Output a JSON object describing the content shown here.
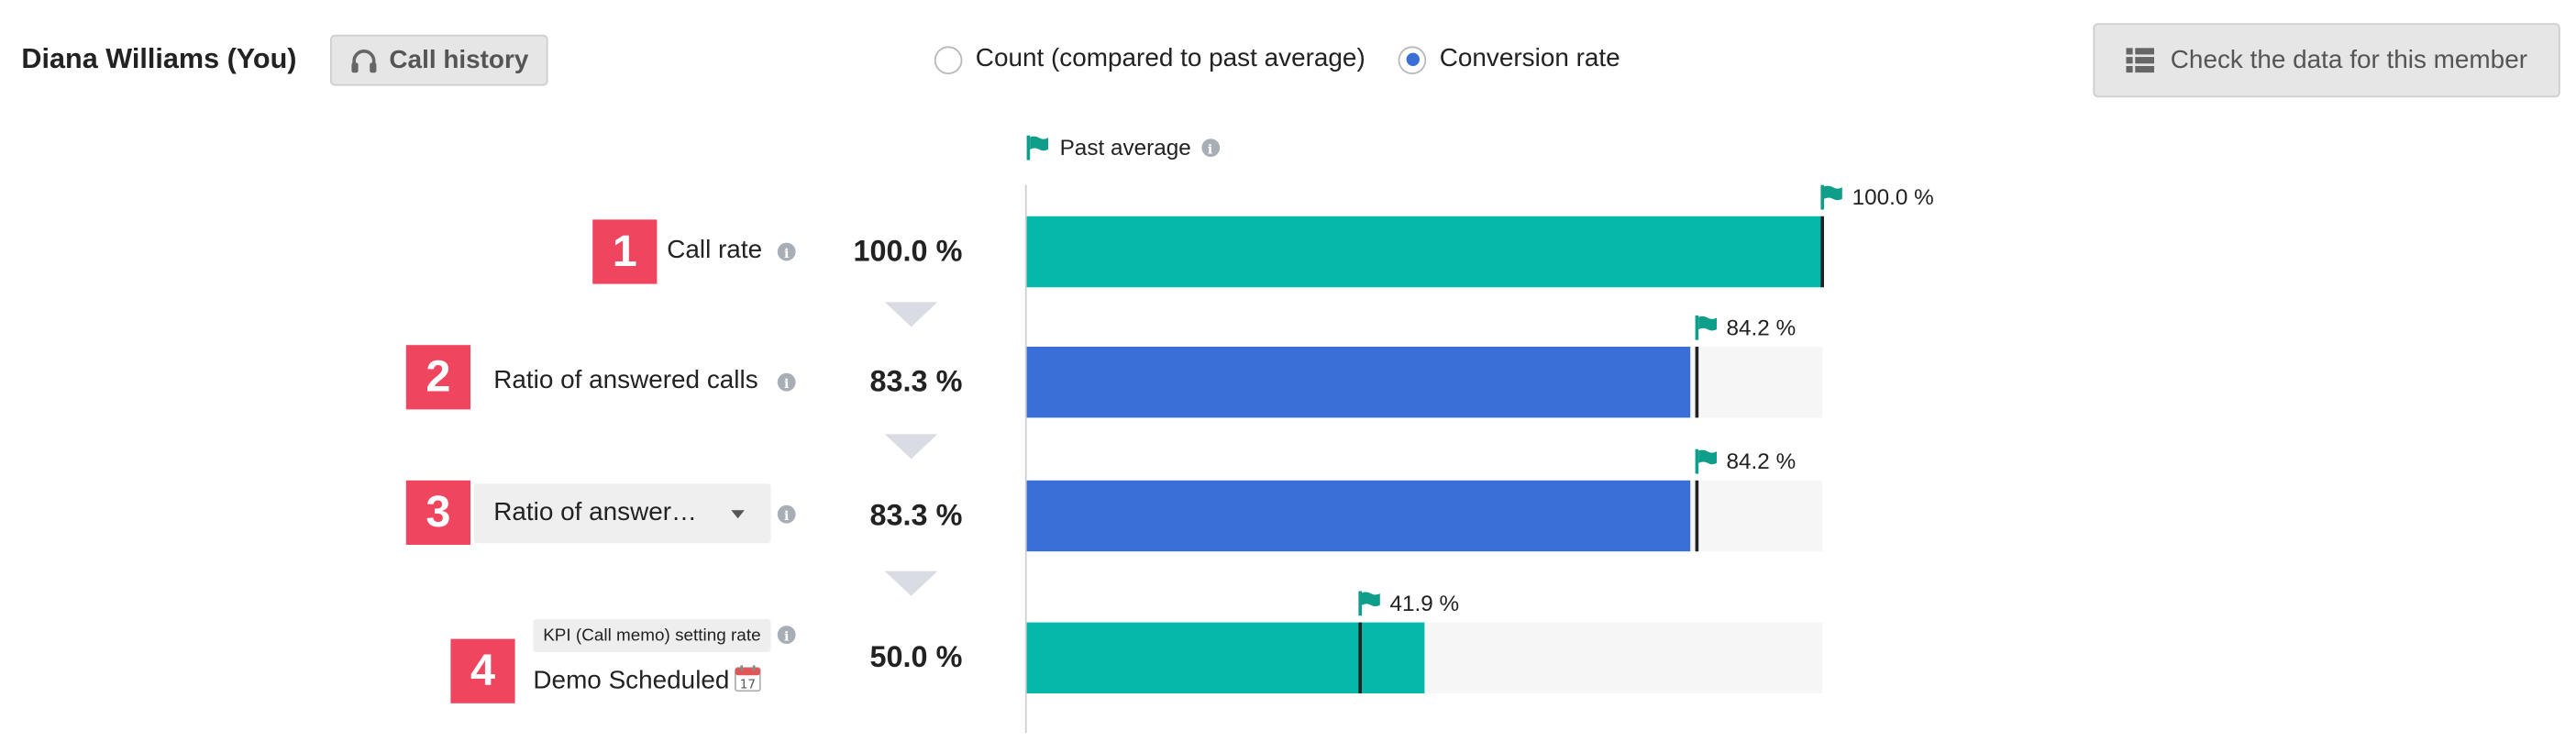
{
  "header": {
    "member_name": "Diana Williams (You)",
    "call_history_label": "Call history",
    "view_options": [
      {
        "label": "Count (compared to past average)",
        "selected": false
      },
      {
        "label": "Conversion rate",
        "selected": true
      }
    ],
    "check_data_label": "Check the data for this member"
  },
  "legend": {
    "past_average_label": "Past average"
  },
  "steps": [
    {
      "badge": "1",
      "label": "Call rate",
      "value_text": "100.0 %",
      "value": 100.0,
      "avg_text": "100.0 %",
      "avg": 100.0,
      "color": "#05b8aa"
    },
    {
      "badge": "2",
      "label": "Ratio of answered calls",
      "value_text": "83.3 %",
      "value": 83.3,
      "avg_text": "84.2 %",
      "avg": 84.2,
      "color": "#3a6fd8"
    },
    {
      "badge": "3",
      "select_value": "Ratio of answer…",
      "value_text": "83.3 %",
      "value": 83.3,
      "avg_text": "84.2 %",
      "avg": 84.2,
      "color": "#3a6fd8"
    },
    {
      "badge": "4",
      "tag": "KPI (Call memo) setting rate",
      "label": "Demo Scheduled",
      "calendar_day": "17",
      "value_text": "50.0 %",
      "value": 50.0,
      "avg_text": "41.9 %",
      "avg": 41.9,
      "color": "#05b8aa"
    }
  ],
  "icons": {
    "call_history": "headset-icon",
    "check_data": "table-icon",
    "past_average": "flag-icon",
    "info": "info-icon",
    "calendar": "calendar-icon"
  },
  "colors": {
    "flag": "#0e9e8a",
    "badge": "#f0455f",
    "teal_bar": "#05b8aa",
    "blue_bar": "#3a6fd8"
  }
}
